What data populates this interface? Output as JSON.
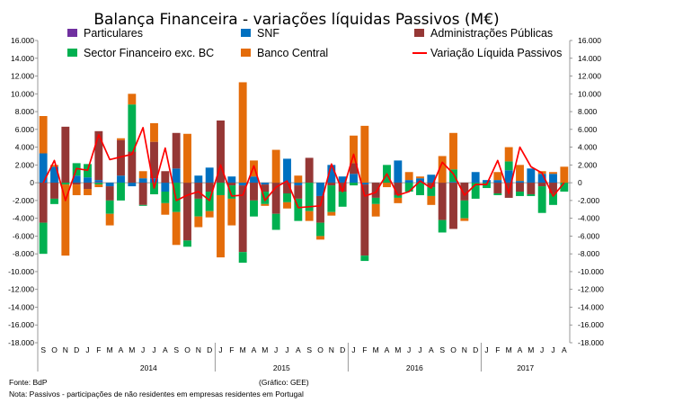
{
  "chart_data": {
    "type": "bar",
    "stacked": true,
    "title": "Balança Financeira - variações líquidas Passivos (M€)",
    "ylim": [
      -18000,
      16000
    ],
    "yticks": [
      16000,
      14000,
      12000,
      10000,
      8000,
      6000,
      4000,
      2000,
      0,
      -2000,
      -4000,
      -6000,
      -8000,
      -10000,
      -12000,
      -14000,
      -16000,
      -18000
    ],
    "ytick_labels": [
      "16.000",
      "14.000",
      "12.000",
      "10.000",
      "8.000",
      "6.000",
      "4.000",
      "2.000",
      "0",
      "-2.000",
      "-4.000",
      "-6.000",
      "-8.000",
      "-10.000",
      "-12.000",
      "-14.000",
      "-16.000",
      "-18.000"
    ],
    "categories": [
      "S",
      "O",
      "N",
      "D",
      "J",
      "F",
      "M",
      "A",
      "M",
      "J",
      "J",
      "A",
      "S",
      "O",
      "N",
      "D",
      "J",
      "F",
      "M",
      "A",
      "M",
      "J",
      "J",
      "A",
      "S",
      "O",
      "N",
      "D",
      "J",
      "F",
      "M",
      "A",
      "M",
      "J",
      "J",
      "A",
      "S",
      "O",
      "N",
      "D",
      "J",
      "F",
      "M",
      "A",
      "M",
      "J",
      "J",
      "A"
    ],
    "year_labels": [
      {
        "label": "2014",
        "start": 4,
        "end": 15
      },
      {
        "label": "2015",
        "start": 16,
        "end": 27
      },
      {
        "label": "2016",
        "start": 28,
        "end": 39
      },
      {
        "label": "2017",
        "start": 40,
        "end": 47
      }
    ],
    "legend": "top",
    "grid": false,
    "series": [
      {
        "name": "Particulares",
        "color": "#7030A0",
        "values": [
          0,
          0,
          0,
          0,
          0,
          100,
          0,
          0,
          0,
          0,
          0,
          0,
          0,
          0,
          0,
          0,
          0,
          0,
          0,
          0,
          0,
          0,
          0,
          0,
          0,
          0,
          0,
          0,
          0,
          0,
          0,
          0,
          0,
          0,
          0,
          0,
          0,
          0,
          0,
          0,
          0,
          0,
          0,
          0,
          0,
          0,
          0,
          0
        ]
      },
      {
        "name": "SNF",
        "color": "#0070C0",
        "values": [
          3300,
          1800,
          0,
          800,
          600,
          200,
          -400,
          800,
          -400,
          500,
          500,
          -1000,
          1600,
          0,
          800,
          1700,
          0,
          700,
          -300,
          700,
          -200,
          0,
          2700,
          -300,
          0,
          -1500,
          2000,
          700,
          1000,
          -200,
          0,
          0,
          2500,
          300,
          500,
          900,
          0,
          100,
          0,
          1200,
          300,
          300,
          1400,
          200,
          1600,
          1000,
          1000,
          0
        ]
      },
      {
        "name": "Administrações Públicas",
        "color": "#953735",
        "values": [
          -4500,
          -1800,
          6300,
          -200,
          -700,
          5500,
          -1600,
          4000,
          3500,
          -2500,
          4100,
          1300,
          4000,
          -6500,
          -1800,
          -1000,
          7000,
          -300,
          -7500,
          -2000,
          -800,
          -3500,
          -1200,
          -1500,
          2800,
          -3000,
          -300,
          -1000,
          1200,
          -8000,
          -1700,
          0,
          -1400,
          0,
          0,
          -500,
          -4200,
          -5200,
          -2000,
          0,
          0,
          -1200,
          -1700,
          -1000,
          -1300,
          -400,
          -1200,
          0
        ]
      },
      {
        "name": "Sector Financeiro exc. BC",
        "color": "#00B050",
        "values": [
          -3500,
          -600,
          -200,
          1400,
          1500,
          -200,
          -1500,
          -2000,
          5300,
          -100,
          -1300,
          -1300,
          -3300,
          -700,
          -2000,
          -2200,
          -1400,
          -1500,
          -1200,
          -1800,
          -1400,
          -1800,
          -1000,
          -2500,
          -3200,
          -1500,
          -3000,
          -1700,
          -300,
          -600,
          -700,
          2000,
          -300,
          -1000,
          -1400,
          -1000,
          -1400,
          1400,
          -2000,
          -1800,
          -600,
          -200,
          1000,
          -500,
          -200,
          -3000,
          -1300,
          -1000
        ]
      },
      {
        "name": "Banco Central",
        "color": "#E46C0A",
        "values": [
          4200,
          200,
          -8000,
          -1200,
          -700,
          -300,
          -1300,
          200,
          1200,
          800,
          2100,
          -1300,
          -3700,
          5500,
          -1200,
          -700,
          -7000,
          -3000,
          11300,
          1800,
          -200,
          3700,
          -700,
          800,
          -1100,
          -400,
          -400,
          0,
          3100,
          6400,
          -1400,
          -500,
          -600,
          900,
          200,
          -1000,
          3000,
          4100,
          -300,
          0,
          0,
          900,
          1600,
          1800,
          0,
          300,
          200,
          1800
        ]
      },
      {
        "name": "Variação Líquida Passivos",
        "color": "#FF0000",
        "type": "line",
        "values": [
          0,
          2500,
          -2000,
          1600,
          1400,
          5400,
          2600,
          2900,
          3200,
          6200,
          -600,
          3900,
          -2000,
          -1400,
          -1000,
          -2000,
          2000,
          -1500,
          -1400,
          1900,
          -2000,
          -500,
          200,
          -2800,
          -2700,
          -2600,
          2100,
          -1000,
          3200,
          -1500,
          -1100,
          1000,
          -1400,
          -1000,
          200,
          -600,
          2300,
          1000,
          -1400,
          -200,
          -200,
          2500,
          -1200,
          4000,
          1800,
          1100,
          -1500,
          0
        ]
      }
    ]
  },
  "footnotes": {
    "source": "Fonte: BdP",
    "credit": "(Gráfico: GEE)",
    "note": "Nota: Passivos - participações de não residentes em empresas residentes em Portugal"
  }
}
